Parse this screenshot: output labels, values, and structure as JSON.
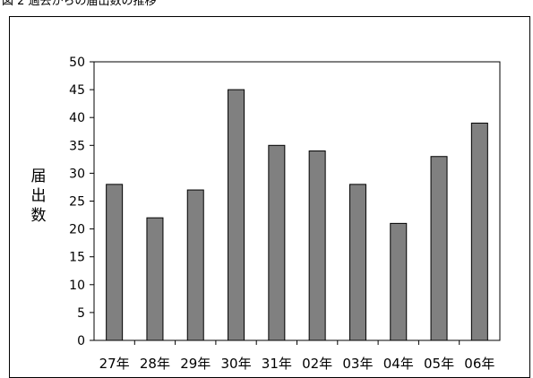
{
  "figure_title": "図 2 過去からの届出数の推移",
  "chart_data": {
    "type": "bar",
    "categories": [
      "27年",
      "28年",
      "29年",
      "30年",
      "31年",
      "02年",
      "03年",
      "04年",
      "05年",
      "06年"
    ],
    "values": [
      28,
      22,
      27,
      45,
      35,
      34,
      28,
      21,
      33,
      39
    ],
    "title": "",
    "xlabel": "",
    "ylabel": "届出数",
    "ylim": [
      0,
      50
    ],
    "ytick_step": 5,
    "yticks": [
      "0",
      "5",
      "10",
      "15",
      "20",
      "25",
      "30",
      "35",
      "40",
      "45",
      "50"
    ],
    "grid": false,
    "legend": "none",
    "bar_color": "#808080",
    "bar_edge_color": "#000000"
  }
}
